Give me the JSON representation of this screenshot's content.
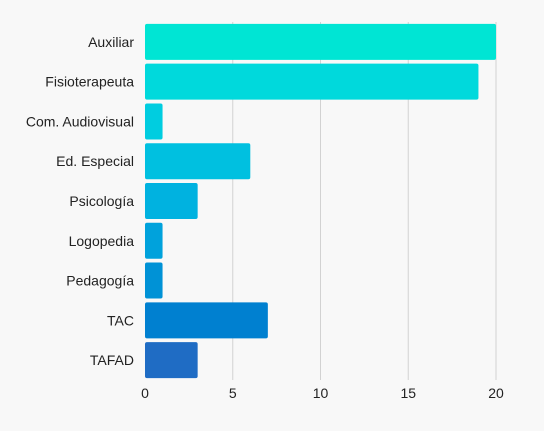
{
  "chart_data": {
    "type": "bar",
    "orientation": "horizontal",
    "categories": [
      "Auxiliar",
      "Fisioterapeuta",
      "Com. Audiovisual",
      "Ed. Especial",
      "Psicología",
      "Logopedia",
      "Pedagogía",
      "TAC",
      "TAFAD"
    ],
    "values": [
      20,
      19,
      1,
      6,
      3,
      1,
      1,
      7,
      3
    ],
    "bar_colors": [
      "#00e5d4",
      "#00d9dc",
      "#00cde0",
      "#00c0e0",
      "#00b2e0",
      "#00a2dc",
      "#0092d6",
      "#0080d0",
      "#1f6cc4"
    ],
    "xticks": [
      "0",
      "5",
      "10",
      "15",
      "20"
    ],
    "xlim": [
      0,
      20
    ],
    "title": "",
    "xlabel": "",
    "ylabel": "",
    "grid": true,
    "legend": "none"
  }
}
